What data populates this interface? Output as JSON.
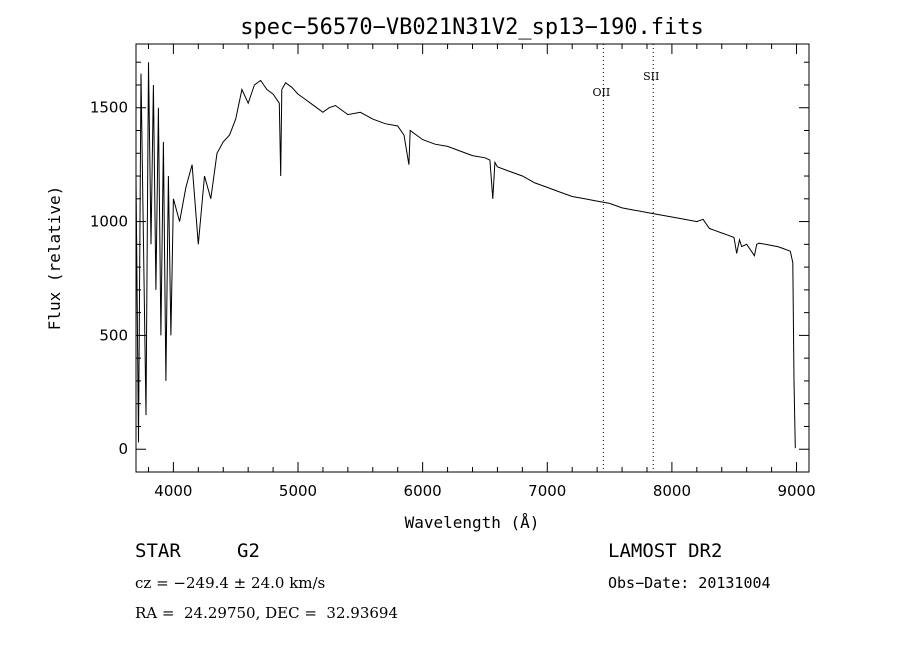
{
  "chart_data": {
    "type": "line",
    "title": "spec−56570−VB021N31V2_sp13−190.fits",
    "xlabel": "Wavelength (Å)",
    "ylabel": "Flux (relative)",
    "xlim": [
      3700,
      9100
    ],
    "ylim": [
      -100,
      1780
    ],
    "xticks": [
      4000,
      5000,
      6000,
      7000,
      8000,
      9000
    ],
    "yticks": [
      0,
      500,
      1000,
      1500
    ],
    "grid": false,
    "series": [
      {
        "x": [
          3700,
          3720,
          3740,
          3760,
          3780,
          3800,
          3820,
          3840,
          3860,
          3880,
          3900,
          3920,
          3940,
          3960,
          3980,
          4000,
          4050,
          4100,
          4150,
          4200,
          4250,
          4300,
          4350,
          4400,
          4450,
          4500,
          4550,
          4600,
          4650,
          4700,
          4750,
          4800,
          4850,
          4861,
          4870,
          4900,
          4950,
          5000,
          5050,
          5100,
          5150,
          5200,
          5250,
          5300,
          5400,
          5500,
          5600,
          5700,
          5800,
          5850,
          5890,
          5900,
          6000,
          6100,
          6200,
          6300,
          6400,
          6500,
          6540,
          6563,
          6580,
          6600,
          6700,
          6800,
          6900,
          7000,
          7100,
          7200,
          7300,
          7400,
          7500,
          7600,
          7700,
          7800,
          7900,
          8000,
          8100,
          8200,
          8250,
          8300,
          8350,
          8400,
          8450,
          8498,
          8520,
          8542,
          8560,
          8600,
          8662,
          8680,
          8700,
          8750,
          8800,
          8850,
          8900,
          8950,
          8970,
          8980,
          8990
        ],
        "y": [
          1200,
          30,
          1650,
          900,
          150,
          1700,
          900,
          1600,
          700,
          1500,
          500,
          1350,
          300,
          1200,
          500,
          1100,
          1000,
          1150,
          1250,
          900,
          1200,
          1100,
          1300,
          1350,
          1380,
          1450,
          1580,
          1520,
          1600,
          1620,
          1580,
          1560,
          1520,
          1200,
          1580,
          1610,
          1590,
          1560,
          1540,
          1520,
          1500,
          1480,
          1500,
          1510,
          1470,
          1480,
          1450,
          1430,
          1420,
          1380,
          1250,
          1400,
          1360,
          1340,
          1330,
          1310,
          1290,
          1280,
          1270,
          1100,
          1260,
          1240,
          1220,
          1200,
          1170,
          1150,
          1130,
          1110,
          1100,
          1090,
          1080,
          1060,
          1050,
          1040,
          1030,
          1020,
          1010,
          1000,
          1010,
          970,
          960,
          950,
          940,
          930,
          860,
          920,
          890,
          900,
          850,
          900,
          905,
          900,
          895,
          890,
          880,
          870,
          820,
          300,
          5
        ]
      }
    ],
    "annotations": [
      {
        "text": "OII",
        "x": 7450
      },
      {
        "text": "SII",
        "x": 7850
      }
    ],
    "reference_lines": [
      7450,
      7850
    ]
  },
  "info": {
    "object_class": "STAR",
    "subclass": "G2",
    "redshift": "cz = −249.4 ± 24.0 km/s",
    "coords": "RA =  24.29750, DEC =  32.93694",
    "survey": "LAMOST DR2",
    "obs_date": "Obs−Date: 20131004"
  }
}
